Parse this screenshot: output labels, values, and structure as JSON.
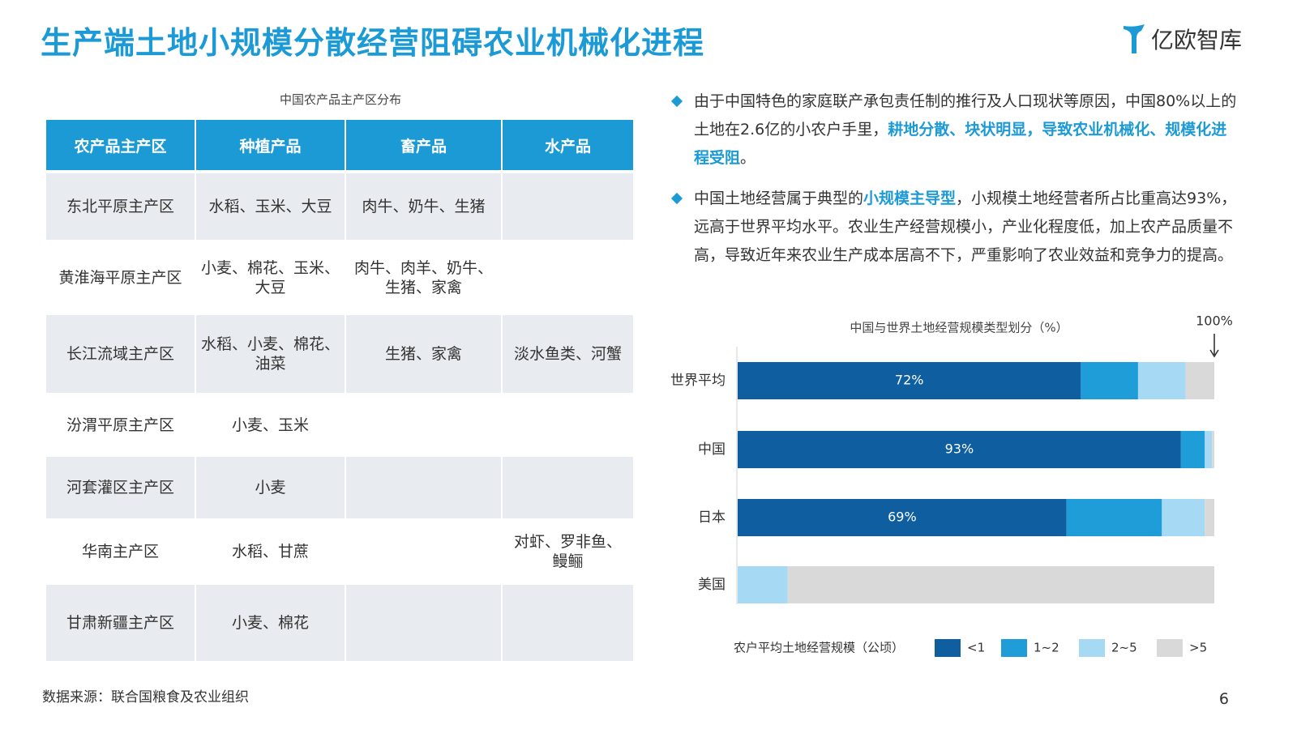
{
  "header": {
    "title": "生产端土地小规模分散经营阻碍农业机械化进程",
    "brand": "亿欧智库"
  },
  "table": {
    "caption": "中国农产品主产区分布",
    "columns": [
      "农产品主产区",
      "种植产品",
      "畜产品",
      "水产品"
    ],
    "rows": [
      [
        "东北平原主产区",
        "水稻、玉米、大豆",
        "肉牛、奶牛、生猪",
        null
      ],
      [
        "黄淮海平原主产区",
        "小麦、棉花、玉米、大豆",
        "肉牛、肉羊、奶牛、生猪、家禽",
        null
      ],
      [
        "长江流域主产区",
        "水稻、小麦、棉花、油菜",
        "生猪、家禽",
        "淡水鱼类、河蟹"
      ],
      [
        "汾渭平原主产区",
        "小麦、玉米",
        null,
        null
      ],
      [
        "河套灌区主产区",
        "小麦",
        null,
        null
      ],
      [
        "华南主产区",
        "水稻、甘蔗",
        null,
        "对虾、罗非鱼、鳗鲡"
      ],
      [
        "甘肃新疆主产区",
        "小麦、棉花",
        null,
        null
      ]
    ]
  },
  "bullets": [
    {
      "segments": [
        {
          "text": "由于中国特色的家庭联产承包责任制的推行及人口现状等原因，中国80%以上的土地在2.6亿的小农户手里，"
        },
        {
          "text": "耕地分散、块状明显，导致农业机械化、规模化进程受阻",
          "strong": true
        },
        {
          "text": "。"
        }
      ]
    },
    {
      "segments": [
        {
          "text": "中国土地经营属于典型的"
        },
        {
          "text": "小规模主导型",
          "strong": true
        },
        {
          "text": "，小规模土地经营者所占比重高达93%，远高于世界平均水平。农业生产经营规模小，产业化程度低，加上农产品质量不高，导致近年来农业生产成本居高不下，严重影响了农业效益和竞争力的提高。"
        }
      ]
    }
  ],
  "chart_data": {
    "type": "stacked_bar_horizontal",
    "title": "中国与世界土地经营规模类型划分（%）",
    "annotation": "100%",
    "categories": [
      "世界平均",
      "中国",
      "日本",
      "美国"
    ],
    "xlim": [
      0,
      100
    ],
    "legend_title": "农户平均土地经营规模（公顷）",
    "series": [
      {
        "name": "<1",
        "color": "#0f5fa0",
        "values": [
          72,
          93,
          69,
          0
        ],
        "value_labels": [
          "72%",
          "93%",
          "69%",
          null
        ]
      },
      {
        "name": "1~2",
        "color": "#1f9dd8",
        "values": [
          12,
          5,
          20,
          0
        ]
      },
      {
        "name": "2~5",
        "color": "#a6d9f3",
        "values": [
          10,
          1.5,
          9,
          10.5
        ]
      },
      {
        "name": ">5",
        "color": "#d9d9d9",
        "values": [
          6,
          0.5,
          2,
          89.5
        ]
      }
    ]
  },
  "footer": {
    "source": "数据来源：联合国粮食及农业组织",
    "page": "6"
  }
}
